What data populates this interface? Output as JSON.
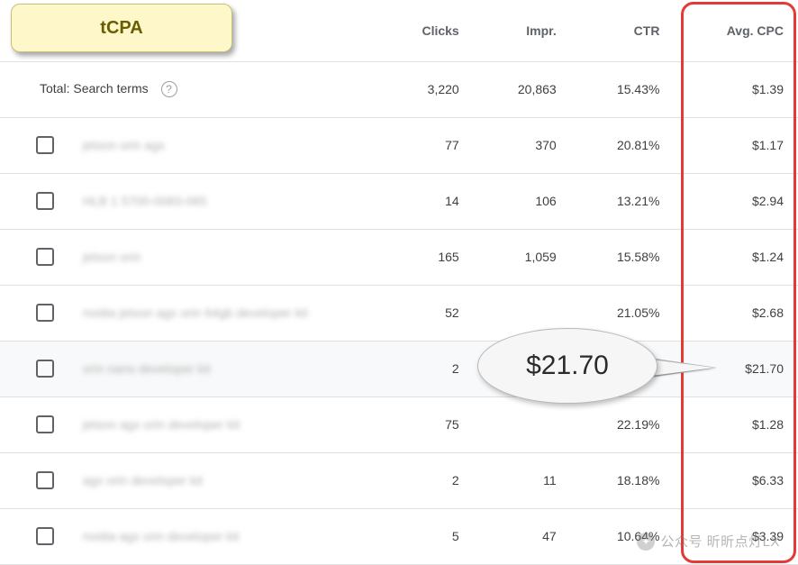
{
  "colors": {
    "badge_bg": "#fdf7ca",
    "badge_border": "#c8bf7a",
    "badge_text": "#6b5e00",
    "highlight_border": "#e53935",
    "yellow_highlight": "#ffeb00",
    "callout_bg": "#f6f6f6",
    "callout_border": "#b8b8b8",
    "row_border": "#e0e0e0",
    "text_primary": "#3c4043",
    "text_header": "#5f6368"
  },
  "badge": {
    "label": "tCPA"
  },
  "headers": {
    "term": "",
    "clicks": "Clicks",
    "impr": "Impr.",
    "ctr": "CTR",
    "cpc": "Avg. CPC"
  },
  "total": {
    "label": "Total: Search terms",
    "clicks": "3,220",
    "impr": "20,863",
    "ctr": "15.43%",
    "cpc": "$1.39"
  },
  "rows": [
    {
      "term": "jetson orin agx",
      "clicks": "77",
      "impr": "370",
      "ctr": "20.81%",
      "cpc": "$1.17"
    },
    {
      "term": "HLB 1 5700-0083-065",
      "clicks": "14",
      "impr": "106",
      "ctr": "13.21%",
      "cpc": "$2.94"
    },
    {
      "term": "jetson orin",
      "clicks": "165",
      "impr": "1,059",
      "ctr": "15.58%",
      "cpc": "$1.24"
    },
    {
      "term": "nvidia jetson agx orin 64gb developer kit",
      "clicks": "52",
      "impr": "",
      "ctr": "21.05%",
      "cpc": "$2.68"
    },
    {
      "term": "orin nano developer kit",
      "clicks": "2",
      "impr": "",
      "ctr": "",
      "cpc": "$21.70"
    },
    {
      "term": "jetson agx orin developer kit",
      "clicks": "75",
      "impr": "",
      "ctr": "22.19%",
      "cpc": "$1.28"
    },
    {
      "term": "agx orin developer kit",
      "clicks": "2",
      "impr": "11",
      "ctr": "18.18%",
      "cpc": "$6.33"
    },
    {
      "term": "nvidia agx orin developer kit",
      "clicks": "5",
      "impr": "47",
      "ctr": "10.64%",
      "cpc": "$3.39"
    }
  ],
  "callout": {
    "value": "$21.70"
  },
  "watermark": {
    "text": "公众号   昕昕点灯LX"
  }
}
